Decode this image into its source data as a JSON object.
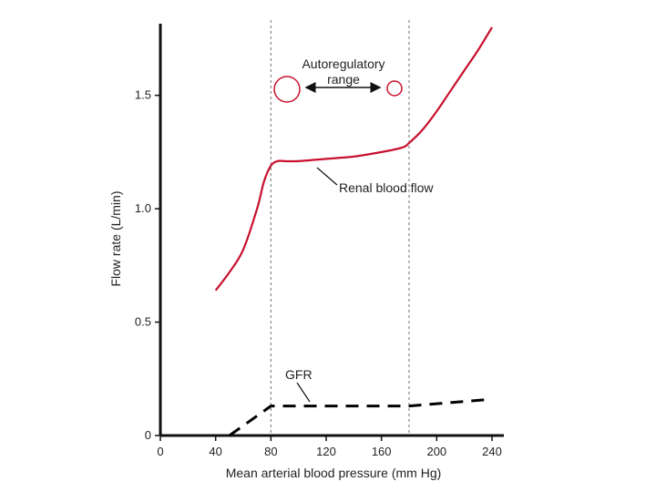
{
  "chart_data": {
    "type": "line",
    "xlabel": "Mean arterial blood pressure (mm Hg)",
    "ylabel": "Flow rate (L/min)",
    "xlim": [
      0,
      240
    ],
    "ylim": [
      0,
      1.8
    ],
    "x_ticks": [
      0,
      40,
      80,
      120,
      160,
      200,
      240
    ],
    "y_ticks": [
      0,
      0.5,
      1.0,
      1.5
    ],
    "y_tick_labels": [
      "0",
      "0.5",
      "1.0",
      "1.5"
    ],
    "grid": false,
    "autoregulatory_bounds": [
      80,
      180
    ],
    "series": [
      {
        "name": "Renal blood flow",
        "color": "#c8102e",
        "style": "solid",
        "x": [
          40,
          50,
          60,
          70,
          75,
          80,
          85,
          90,
          100,
          120,
          140,
          160,
          175,
          180,
          190,
          200,
          210,
          220,
          230,
          240
        ],
        "y": [
          0.64,
          0.72,
          0.82,
          1.0,
          1.12,
          1.19,
          1.21,
          1.21,
          1.21,
          1.22,
          1.23,
          1.25,
          1.27,
          1.29,
          1.35,
          1.43,
          1.52,
          1.61,
          1.7,
          1.8
        ]
      },
      {
        "name": "GFR",
        "color": "#000000",
        "style": "dashed",
        "x": [
          50,
          80,
          180,
          240
        ],
        "y": [
          0.0,
          0.13,
          0.13,
          0.16
        ]
      }
    ],
    "annotations": {
      "autoregulatory_line1": "Autoregulatory",
      "autoregulatory_line2": "range",
      "rbf_label": "Renal blood flow",
      "gfr_label": "GFR"
    },
    "colors": {
      "curve": "#c8102e",
      "axis": "#111111",
      "guide": "#888888"
    }
  }
}
